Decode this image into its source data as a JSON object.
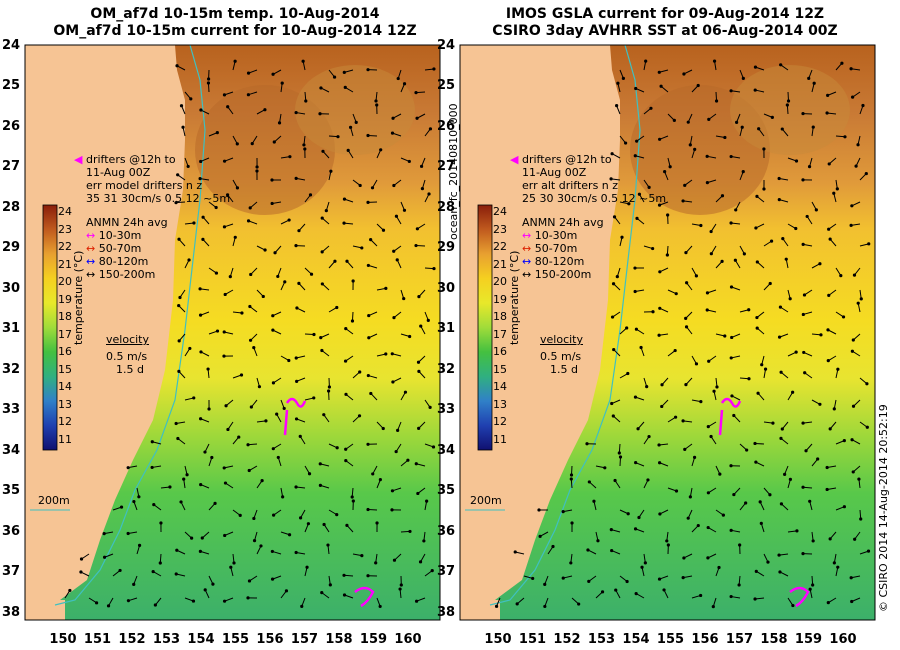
{
  "left_panel": {
    "title_line1": "OM_af7d 10-15m temp. 10-Aug-2014",
    "title_line2": "OM_af7d 10-15m current for 10-Aug-2014 12Z",
    "drifters": [
      "drifters @12h to",
      "11-Aug 00Z",
      "err model drifters n z",
      "35  31     30cm/s 0.5 12 ~5m"
    ],
    "velocity_label": "velocity",
    "velocity_scale": [
      "0.5 m/s",
      "1.5 d"
    ]
  },
  "right_panel": {
    "title_line1": "IMOS GSLA current for 09-Aug-2014 12Z",
    "title_line2": "CSIRO 3day AVHRR SST at 06-Aug-2014 00Z",
    "drifters": [
      "drifters @12h to",
      "11-Aug 00Z",
      "err alt drifters n z",
      "25 30 30cm/s 0.5 12 ~5m"
    ],
    "velocity_label": "velocity",
    "velocity_scale": [
      "0.5 m/s",
      "1.5 d"
    ],
    "side_label": "ocean_fc_20140810_000"
  },
  "shared": {
    "legend_title": "ANMN 24h avg",
    "legend_items": [
      {
        "label": "10-30m",
        "color": "#ff00ff"
      },
      {
        "label": "50-70m",
        "color": "#dd2200"
      },
      {
        "label": "80-120m",
        "color": "#0000ff"
      },
      {
        "label": "150-200m",
        "color": "#000000"
      }
    ],
    "colorbar_label": "temperature (°C)",
    "colorbar_ticks": [
      "24",
      "23",
      "22",
      "21",
      "20",
      "19",
      "18",
      "17",
      "16",
      "15",
      "14",
      "13",
      "12",
      "11"
    ],
    "isobath_label": "200m",
    "lat_ticks": [
      "24",
      "25",
      "26",
      "27",
      "28",
      "29",
      "30",
      "31",
      "32",
      "33",
      "34",
      "35",
      "36",
      "37",
      "38"
    ],
    "lon_ticks": [
      "150",
      "151",
      "152",
      "153",
      "154",
      "155",
      "156",
      "157",
      "158",
      "159",
      "160"
    ],
    "credit": "© CSIRO 2014   14-Aug-2014 20:52:19"
  },
  "colors": {
    "land": "#f6c494",
    "isobath": "#40c0c0",
    "drifter": "#ff00ff"
  }
}
